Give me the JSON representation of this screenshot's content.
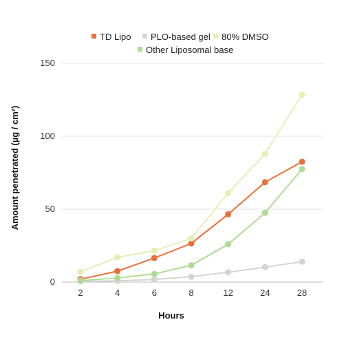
{
  "chart_data": {
    "type": "line",
    "x": [
      "2",
      "4",
      "6",
      "8",
      "12",
      "24",
      "28"
    ],
    "xlabel": "Hours",
    "ylabel": "Amount penetrated (µg / cm²)",
    "ylim": [
      0,
      150
    ],
    "yticks": [
      0,
      50,
      100,
      150
    ],
    "grid": "horizontal",
    "legend_position": "top",
    "series": [
      {
        "name": "TD Lipo",
        "color": "#e8703a",
        "values": [
          2,
          7.5,
          16.5,
          26.5,
          46.5,
          68.5,
          82.5
        ]
      },
      {
        "name": "PLO-based gel",
        "color": "#d4d4d4",
        "values": [
          0.5,
          0.8,
          1.8,
          3.7,
          6.8,
          10.2,
          14
        ]
      },
      {
        "name": "80% DMSO",
        "color": "#e6eeb4",
        "values": [
          7,
          17,
          21.5,
          30,
          61,
          88,
          128.5
        ]
      },
      {
        "name": "Other Liposomal base",
        "color": "#aedb94",
        "values": [
          1,
          2.8,
          5.6,
          11.5,
          26,
          47.5,
          77.5
        ]
      }
    ]
  }
}
